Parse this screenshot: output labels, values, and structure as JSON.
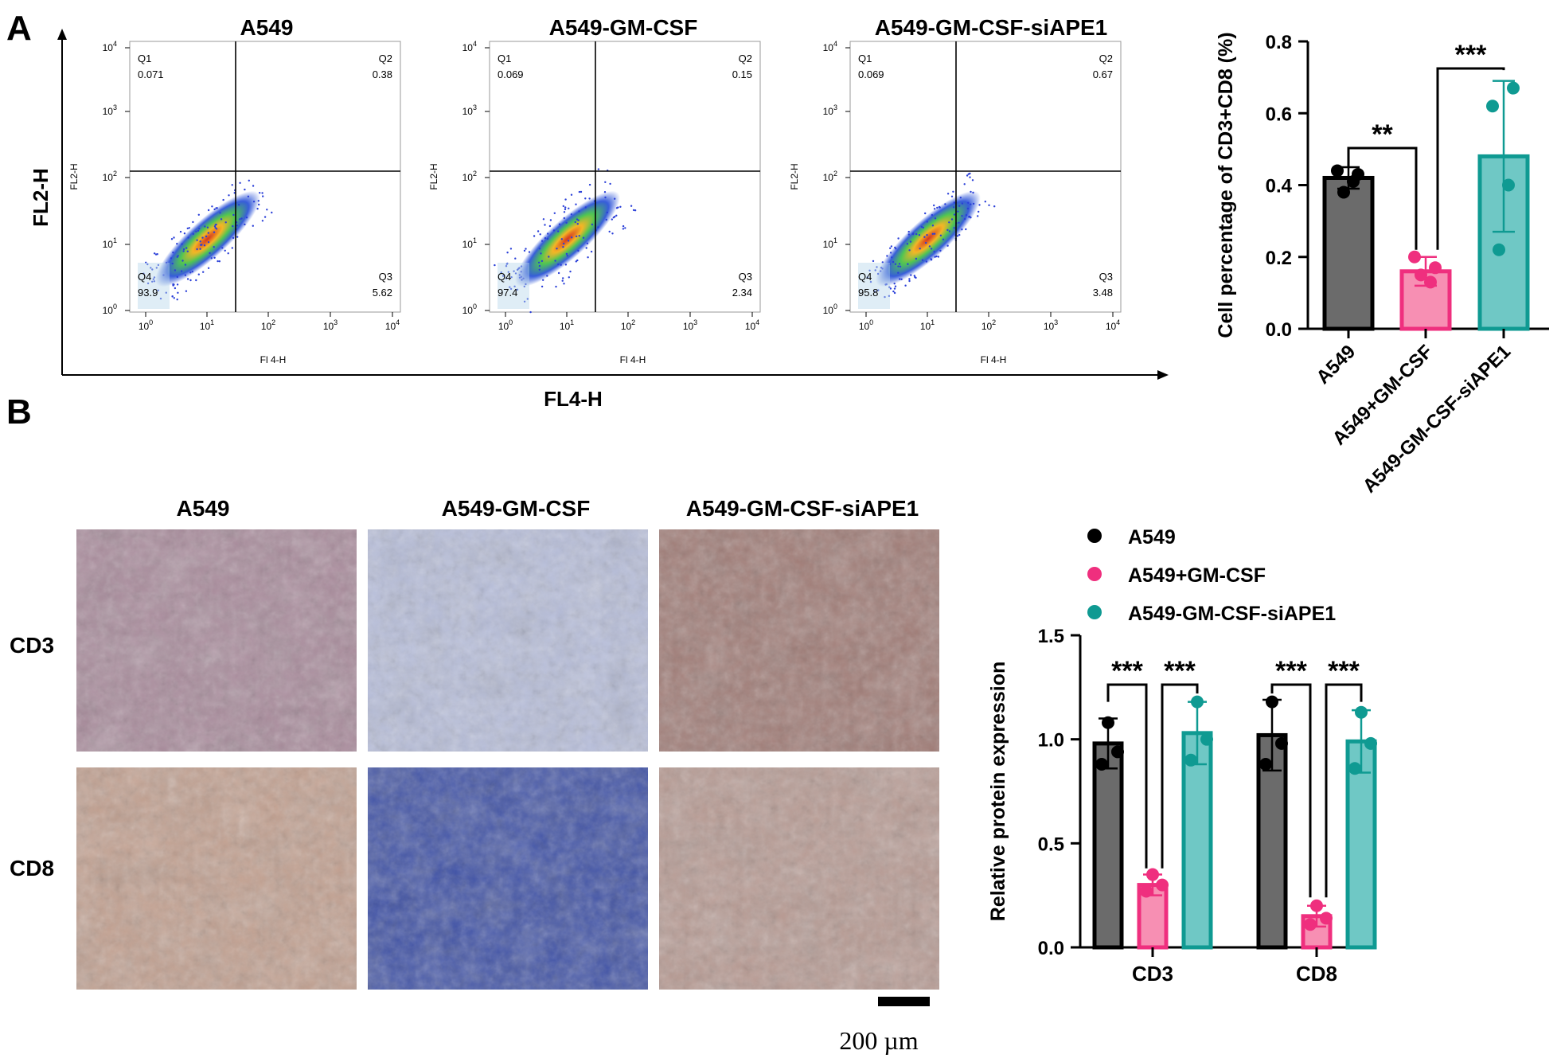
{
  "panels": {
    "a": "A",
    "b": "B"
  },
  "flow": {
    "axis_x": "FL4-H",
    "axis_y": "FL2-H",
    "plot_xlabel": "Fl 4-H",
    "plot_ylabel": "FL2-H",
    "ticks": [
      "10",
      "10",
      "10",
      "10",
      "10"
    ],
    "tick_exp": [
      "0",
      "1",
      "2",
      "3",
      "4"
    ],
    "plots": [
      {
        "title": "A549",
        "q1": "Q1",
        "q1v": "0.071",
        "q2": "Q2",
        "q2v": "0.38",
        "q3": "Q3",
        "q3v": "5.62",
        "q4": "Q4",
        "q4v": "93.9",
        "spread": 0.1
      },
      {
        "title": "A549-GM-CSF",
        "q1": "Q1",
        "q1v": "0.069",
        "q2": "Q2",
        "q2v": "0.15",
        "q3": "Q3",
        "q3v": "2.34",
        "q4": "Q4",
        "q4v": "97.4",
        "spread": 0.16
      },
      {
        "title": "A549-GM-CSF-siAPE1",
        "q1": "Q1",
        "q1v": "0.069",
        "q2": "Q2",
        "q2v": "0.67",
        "q3": "Q3",
        "q3v": "3.48",
        "q4": "Q4",
        "q4v": "95.8",
        "spread": 0.06
      }
    ]
  },
  "ihc": {
    "columns": [
      "A549",
      "A549-GM-CSF",
      "A549-GM-CSF-siAPE1"
    ],
    "rows": [
      "CD3",
      "CD8"
    ],
    "scale_bar": "200 µm"
  },
  "colors": {
    "A549": "#6b6b6b",
    "A549+GM-CSF": "#f78fb3",
    "A549-GM-CSF-siAPE1": "#6fc8c5",
    "A549_edge": "#000000",
    "A549+GM-CSF_edge": "#ef2f7e",
    "A549-GM-CSF-siAPE1_edge": "#0f9a92"
  },
  "chart_data": [
    {
      "type": "bar",
      "categories": [
        "A549",
        "A549+GM-CSF",
        "A549-GM-CSF-siAPE1"
      ],
      "values": [
        0.42,
        0.16,
        0.48
      ],
      "errors": [
        0.03,
        0.04,
        0.21
      ],
      "points": [
        [
          0.44,
          0.43,
          0.41,
          0.38
        ],
        [
          0.2,
          0.17,
          0.13,
          0.15
        ],
        [
          0.62,
          0.67,
          0.4,
          0.22
        ]
      ],
      "ylabel": "Cell  percentage of CD3+CD8 (%)",
      "ylim": [
        0,
        0.8
      ],
      "yticks": [
        "0.0",
        "0.2",
        "0.4",
        "0.6",
        "0.8"
      ],
      "significance": [
        "**",
        "***"
      ]
    },
    {
      "type": "bar",
      "categories": [
        "CD3",
        "CD8"
      ],
      "series": [
        {
          "name": "A549",
          "values": [
            0.98,
            1.02
          ],
          "errors": [
            0.12,
            0.17
          ],
          "points": [
            [
              1.08,
              0.94,
              0.88
            ],
            [
              1.18,
              0.98,
              0.88
            ]
          ]
        },
        {
          "name": "A549+GM-CSF",
          "values": [
            0.3,
            0.15
          ],
          "errors": [
            0.05,
            0.05
          ],
          "points": [
            [
              0.35,
              0.3,
              0.27
            ],
            [
              0.2,
              0.14,
              0.11
            ]
          ]
        },
        {
          "name": "A549-GM-CSF-siAPE1",
          "values": [
            1.03,
            0.99
          ],
          "errors": [
            0.15,
            0.15
          ],
          "points": [
            [
              1.18,
              1.0,
              0.9
            ],
            [
              1.13,
              0.98,
              0.86
            ]
          ]
        }
      ],
      "ylabel": "Relative protein expression",
      "ylim": [
        0,
        1.5
      ],
      "yticks": [
        "0.0",
        "0.5",
        "1.0",
        "1.5"
      ],
      "significance": [
        "***",
        "***",
        "***",
        "***"
      ],
      "legend": "top"
    }
  ]
}
